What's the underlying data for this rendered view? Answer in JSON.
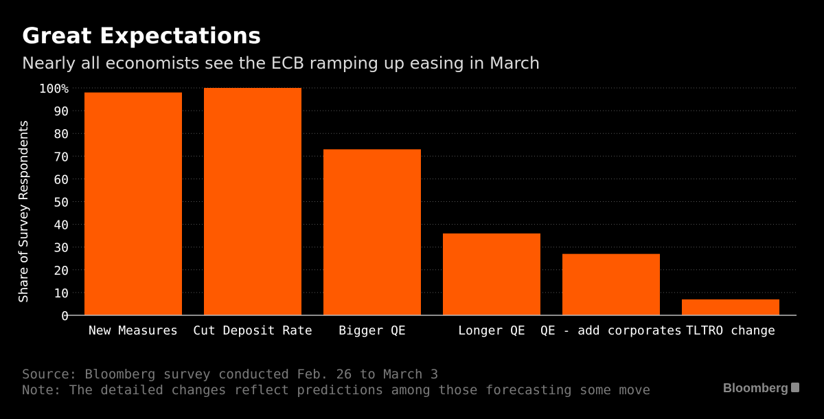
{
  "chart_data": {
    "type": "bar",
    "title": "Great Expectations",
    "subtitle": "Nearly all economists see the ECB ramping up easing in March",
    "ylabel": "Share of Survey Respondents",
    "xlabel": "",
    "categories": [
      "New Measures",
      "Cut Deposit Rate",
      "Bigger QE",
      "Longer QE",
      "QE - add corporates",
      "TLTRO change"
    ],
    "values": [
      98,
      100,
      73,
      36,
      27,
      7
    ],
    "ylim": [
      0,
      100
    ],
    "yticks": [
      "0",
      "10",
      "20",
      "30",
      "40",
      "50",
      "60",
      "70",
      "80",
      "90",
      "100%"
    ],
    "grid": true,
    "bar_color": "#ff5a00",
    "source": "Source: Bloomberg survey conducted Feb. 26 to March 3",
    "note": "Note: The detailed changes reflect predictions among those forecasting some move"
  },
  "brand": {
    "name": "Bloomberg",
    "icon": "bloomberg-logo-icon"
  }
}
